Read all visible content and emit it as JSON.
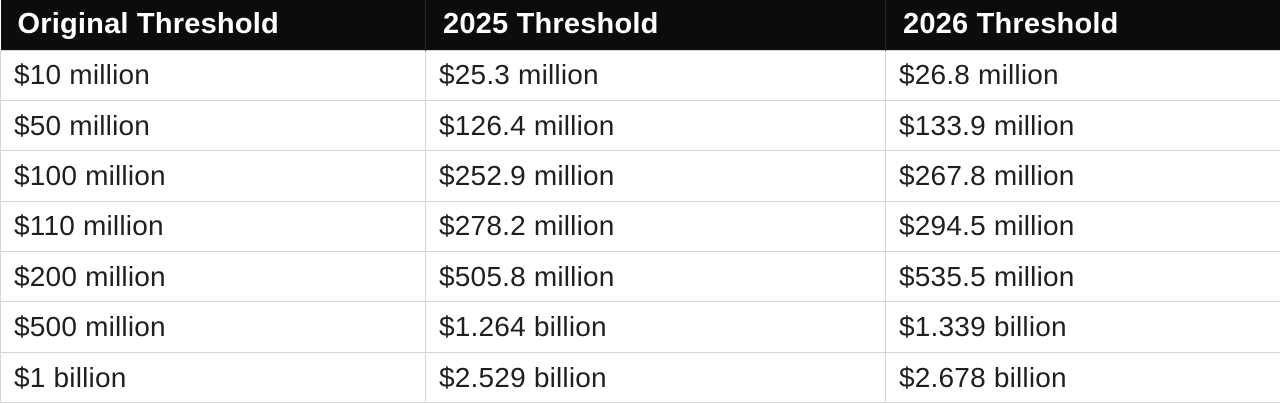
{
  "table": {
    "columns": [
      {
        "label": "Original Threshold"
      },
      {
        "label": "2025 Threshold"
      },
      {
        "label": "2026 Threshold"
      }
    ],
    "rows": [
      [
        "$10 million",
        "$25.3 million",
        "$26.8 million"
      ],
      [
        "$50 million",
        "$126.4 million",
        "$133.9 million"
      ],
      [
        "$100 million",
        "$252.9 million",
        "$267.8 million"
      ],
      [
        "$110 million",
        "$278.2 million",
        "$294.5 million"
      ],
      [
        "$200 million",
        "$505.8 million",
        "$535.5 million"
      ],
      [
        "$500 million",
        "$1.264 billion",
        "$1.339 billion"
      ],
      [
        "$1 billion",
        "$2.529 billion",
        "$2.678 billion"
      ]
    ],
    "colors": {
      "header_bg": "#0c0c0c",
      "header_text": "#ffffff",
      "body_text": "#1f1f1f",
      "border": "#d6d6d6",
      "row_bg": "#ffffff"
    }
  }
}
